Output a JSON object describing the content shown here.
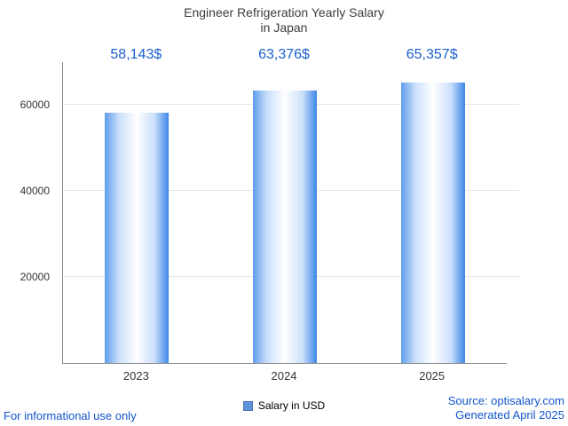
{
  "title": {
    "line1": "Engineer Refrigeration Yearly Salary",
    "line2": "in Japan"
  },
  "chart_data": {
    "type": "bar",
    "title": "Engineer Refrigeration Yearly Salary in Japan",
    "categories": [
      "2023",
      "2024",
      "2025"
    ],
    "values": [
      58143,
      63376,
      65357
    ],
    "value_labels": [
      "58,143$",
      "63,376$",
      "65,357$"
    ],
    "xlabel": "",
    "ylabel": "",
    "ylim": [
      0,
      70000
    ],
    "yticks": [
      20000,
      40000,
      60000
    ],
    "grid": true,
    "legend": [
      "Salary in USD"
    ],
    "legend_position": "bottom",
    "bar_color_edge": "#3d86e6",
    "bar_color_center": "#ffffff",
    "value_label_color": "#1b5fce"
  },
  "legend": {
    "label": "Salary in USD",
    "swatch_color": "#6191d8"
  },
  "footer": {
    "disclaimer": "For informational use only",
    "source": "Source: optisalary.com",
    "generated": "Generated April 2025"
  }
}
